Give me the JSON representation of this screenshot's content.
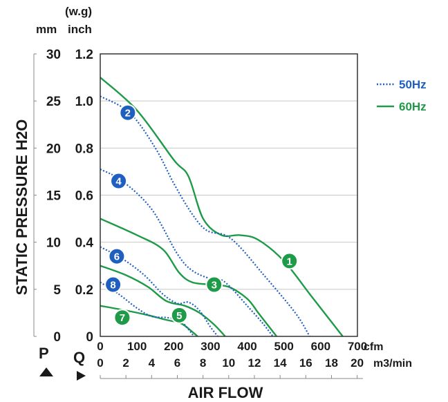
{
  "chart_data": {
    "type": "line",
    "xlabel": "AIR FLOW",
    "ylabel": "STATIC PRESSURE H2O",
    "x_unit_cfm": "cfm",
    "x_unit_m3": "m3/min",
    "y_unit_mm": "mm",
    "y_unit_inch_prefix": "(w.g)",
    "y_unit_inch": "inch",
    "p_label": "P",
    "q_label": "Q",
    "x_ticks_cfm": [
      "0",
      "100",
      "200",
      "300",
      "400",
      "500",
      "600",
      "700"
    ],
    "x_ticks_m3": [
      "0",
      "2",
      "4",
      "6",
      "8",
      "10",
      "12",
      "14",
      "16",
      "18",
      "20"
    ],
    "y_ticks_mm": [
      "0",
      "5",
      "10",
      "15",
      "20",
      "25",
      "30"
    ],
    "y_ticks_inch": [
      "0",
      "0.2",
      "0.4",
      "0.6",
      "0.8",
      "1.0",
      "1.2"
    ],
    "xlim": [
      0,
      700
    ],
    "ylim": [
      0,
      1.2
    ],
    "grid": true,
    "legend_position": "right",
    "colors": {
      "50Hz": "#1f5fbf",
      "60Hz": "#1f9a48"
    },
    "series": [
      {
        "name": "60Hz",
        "curve": "1",
        "points": [
          [
            0,
            1.1
          ],
          [
            100,
            0.96
          ],
          [
            200,
            0.75
          ],
          [
            240,
            0.68
          ],
          [
            280,
            0.5
          ],
          [
            330,
            0.43
          ],
          [
            380,
            0.43
          ],
          [
            430,
            0.41
          ],
          [
            500,
            0.32
          ],
          [
            570,
            0.18
          ],
          [
            620,
            0.08
          ],
          [
            660,
            0.0
          ]
        ]
      },
      {
        "name": "50Hz",
        "curve": "2",
        "points": [
          [
            0,
            1.02
          ],
          [
            80,
            0.95
          ],
          [
            150,
            0.8
          ],
          [
            200,
            0.65
          ],
          [
            250,
            0.52
          ],
          [
            290,
            0.45
          ],
          [
            340,
            0.43
          ],
          [
            380,
            0.38
          ],
          [
            440,
            0.27
          ],
          [
            500,
            0.16
          ],
          [
            540,
            0.08
          ],
          [
            570,
            0.0
          ]
        ]
      },
      {
        "name": "60Hz",
        "curve": "3",
        "points": [
          [
            0,
            0.5
          ],
          [
            100,
            0.43
          ],
          [
            170,
            0.37
          ],
          [
            215,
            0.27
          ],
          [
            250,
            0.23
          ],
          [
            300,
            0.22
          ],
          [
            350,
            0.21
          ],
          [
            400,
            0.16
          ],
          [
            430,
            0.1
          ],
          [
            460,
            0.04
          ],
          [
            480,
            0.0
          ]
        ]
      },
      {
        "name": "50Hz",
        "curve": "4",
        "points": [
          [
            0,
            0.71
          ],
          [
            60,
            0.66
          ],
          [
            140,
            0.54
          ],
          [
            210,
            0.35
          ],
          [
            250,
            0.28
          ],
          [
            300,
            0.245
          ],
          [
            330,
            0.24
          ],
          [
            360,
            0.2
          ],
          [
            400,
            0.13
          ],
          [
            440,
            0.06
          ],
          [
            470,
            0.0
          ]
        ]
      },
      {
        "name": "60Hz",
        "curve": "5",
        "points": [
          [
            0,
            0.3
          ],
          [
            70,
            0.26
          ],
          [
            130,
            0.21
          ],
          [
            180,
            0.15
          ],
          [
            230,
            0.13
          ],
          [
            270,
            0.1
          ],
          [
            310,
            0.05
          ],
          [
            340,
            0.0
          ]
        ]
      },
      {
        "name": "50Hz",
        "curve": "6",
        "points": [
          [
            0,
            0.38
          ],
          [
            60,
            0.33
          ],
          [
            120,
            0.26
          ],
          [
            170,
            0.18
          ],
          [
            210,
            0.14
          ],
          [
            240,
            0.145
          ],
          [
            270,
            0.11
          ],
          [
            300,
            0.04
          ],
          [
            320,
            0.0
          ]
        ]
      },
      {
        "name": "60Hz",
        "curve": "7",
        "points": [
          [
            0,
            0.13
          ],
          [
            70,
            0.11
          ],
          [
            130,
            0.09
          ],
          [
            180,
            0.07
          ],
          [
            220,
            0.055
          ],
          [
            250,
            0.02
          ],
          [
            265,
            0.0
          ]
        ]
      },
      {
        "name": "50Hz",
        "curve": "8",
        "points": [
          [
            0,
            0.23
          ],
          [
            50,
            0.18
          ],
          [
            100,
            0.12
          ],
          [
            140,
            0.085
          ],
          [
            180,
            0.08
          ],
          [
            215,
            0.07
          ],
          [
            240,
            0.03
          ],
          [
            255,
            0.0
          ]
        ]
      }
    ],
    "markers": [
      {
        "label": "1",
        "hz": "60Hz",
        "x": 515,
        "y": 0.32
      },
      {
        "label": "2",
        "hz": "50Hz",
        "x": 75,
        "y": 0.95
      },
      {
        "label": "3",
        "hz": "60Hz",
        "x": 310,
        "y": 0.22
      },
      {
        "label": "4",
        "hz": "50Hz",
        "x": 50,
        "y": 0.66
      },
      {
        "label": "5",
        "hz": "60Hz",
        "x": 215,
        "y": 0.09
      },
      {
        "label": "6",
        "hz": "50Hz",
        "x": 45,
        "y": 0.34
      },
      {
        "label": "7",
        "hz": "60Hz",
        "x": 60,
        "y": 0.08
      },
      {
        "label": "8",
        "hz": "50Hz",
        "x": 35,
        "y": 0.22
      }
    ],
    "legend": [
      {
        "label": "50Hz",
        "style": "dotted"
      },
      {
        "label": "60Hz",
        "style": "solid"
      }
    ]
  }
}
